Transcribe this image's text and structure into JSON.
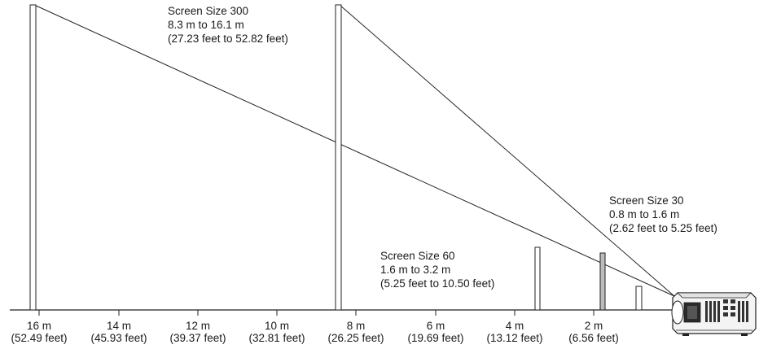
{
  "screen_300": {
    "size": "Screen Size 300",
    "range_m": "8.3 m to 16.1 m",
    "range_ft": "(27.23 feet to 52.82 feet)"
  },
  "screen_60": {
    "size": "Screen Size 60",
    "range_m": "1.6 m to 3.2 m",
    "range_ft": "(5.25 feet to 10.50 feet)"
  },
  "screen_30": {
    "size": "Screen Size 30",
    "range_m": "0.8 m to 1.6 m",
    "range_ft": "(2.62 feet to 5.25 feet)"
  },
  "axis": {
    "ticks": [
      {
        "m": "16 m",
        "ft": "(52.49 feet)"
      },
      {
        "m": "14 m",
        "ft": "(45.93 feet)"
      },
      {
        "m": "12 m",
        "ft": "(39.37 feet)"
      },
      {
        "m": "10 m",
        "ft": "(32.81 feet)"
      },
      {
        "m": "8 m",
        "ft": "(26.25 feet)"
      },
      {
        "m": "6 m",
        "ft": "(19.69 feet)"
      },
      {
        "m": "4 m",
        "ft": "(13.12 feet)"
      },
      {
        "m": "2 m",
        "ft": "(6.56 feet)"
      }
    ]
  }
}
